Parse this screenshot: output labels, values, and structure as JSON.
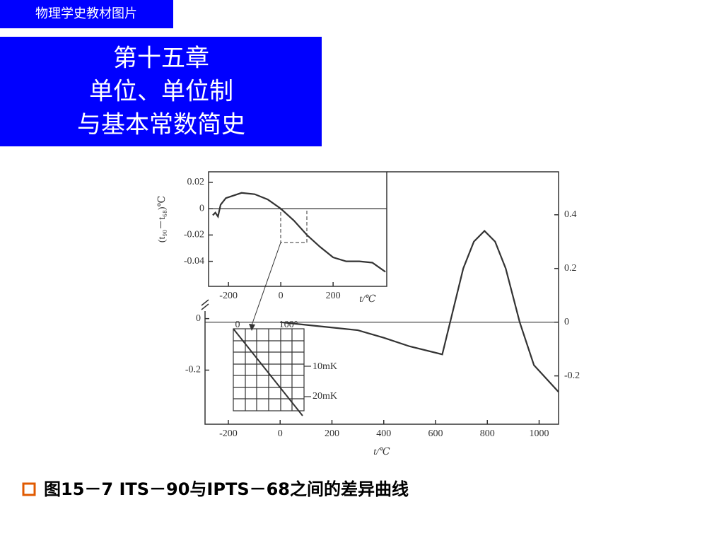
{
  "header": {
    "tag": "物理学史教材图片",
    "title": [
      "第十五章",
      "单位、单位制",
      "与基本常数简史"
    ]
  },
  "chart_data": [
    {
      "type": "line",
      "xlabel": "t/℃",
      "x": [
        0,
        100,
        200,
        300,
        400,
        500,
        626,
        707,
        748,
        789,
        830,
        871,
        925,
        980,
        1075
      ],
      "series": [
        {
          "color": "#333333",
          "axis": "y2",
          "values": [
            0,
            -0.01,
            -0.02,
            -0.03,
            -0.058,
            -0.09,
            -0.12,
            0.2,
            0.3,
            0.34,
            0.3,
            0.2,
            0,
            -0.16,
            -0.26
          ]
        }
      ],
      "xlim": [
        -290,
        1075
      ],
      "xticks": [
        -200,
        0,
        200,
        400,
        600,
        800,
        1000
      ],
      "ylim": [
        -0.41,
        0.57
      ],
      "yticks": [
        0,
        -0.2
      ],
      "y2lim": [
        -0.38,
        0.56
      ],
      "y2ticks": [
        0.4,
        0.2,
        0,
        -0.2
      ]
    },
    {
      "type": "line",
      "xlabel": "t/℃",
      "ylabel": "(t₉₀－t₆₈)℃",
      "x": [
        -260,
        -250,
        -240,
        -230,
        -210,
        -150,
        -100,
        -50,
        0,
        50,
        100,
        150,
        200,
        250,
        300,
        350,
        400
      ],
      "series": [
        {
          "color": "#333333",
          "values": [
            -0.005,
            -0.003,
            -0.006,
            0.003,
            0.008,
            0.012,
            0.011,
            0.007,
            0,
            -0.009,
            -0.02,
            -0.029,
            -0.037,
            -0.04,
            -0.04,
            -0.041,
            -0.048
          ]
        }
      ],
      "xlim": [
        -276,
        405
      ],
      "xticks": [
        -200,
        0,
        200
      ],
      "ylim": [
        -0.059,
        0.028
      ],
      "yticks": [
        0.02,
        0,
        -0.02,
        -0.04
      ]
    }
  ],
  "zoom": {
    "labels": [
      "0",
      "100°",
      "10mK",
      "20mK"
    ]
  },
  "caption": "图15－7  ITS－90与IPTS－68之间的差异曲线"
}
